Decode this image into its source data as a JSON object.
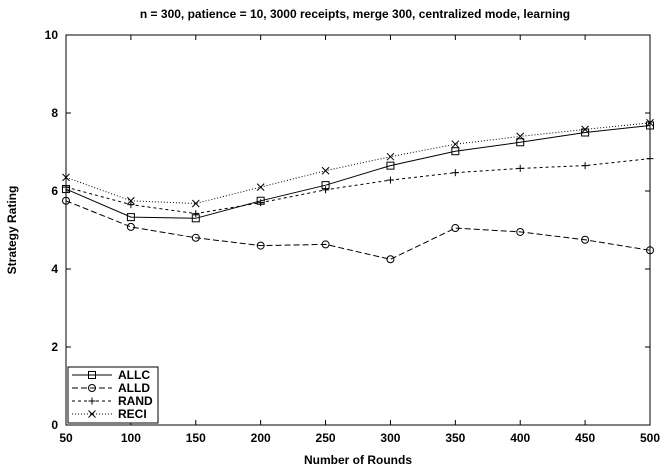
{
  "chart_data": {
    "type": "line",
    "title": "n = 300, patience = 10, 3000 receipts, merge 300, centralized mode, learning",
    "xlabel": "Number of Rounds",
    "ylabel": "Strategy Rating",
    "xlim": [
      50,
      500
    ],
    "ylim": [
      0,
      10
    ],
    "xticks": [
      50,
      100,
      150,
      200,
      250,
      300,
      350,
      400,
      450,
      500
    ],
    "yticks": [
      0,
      2,
      4,
      6,
      8,
      10
    ],
    "grid": false,
    "legend_position": "bottom-left",
    "x": [
      50,
      100,
      150,
      200,
      250,
      300,
      350,
      400,
      450,
      500
    ],
    "series": [
      {
        "name": "ALLC",
        "marker": "square",
        "dash": "solid",
        "values": [
          6.05,
          5.33,
          5.3,
          5.75,
          6.15,
          6.65,
          7.02,
          7.25,
          7.5,
          7.68
        ]
      },
      {
        "name": "ALLD",
        "marker": "circle",
        "dash": "dashed",
        "values": [
          5.75,
          5.08,
          4.8,
          4.6,
          4.63,
          4.25,
          5.05,
          4.95,
          4.75,
          4.48
        ]
      },
      {
        "name": "RAND",
        "marker": "plus",
        "dash": "dashed-short",
        "values": [
          6.1,
          5.65,
          5.42,
          5.7,
          6.03,
          6.28,
          6.47,
          6.58,
          6.65,
          6.83
        ]
      },
      {
        "name": "RECI",
        "marker": "x",
        "dash": "dotted",
        "values": [
          6.35,
          5.75,
          5.68,
          6.1,
          6.52,
          6.88,
          7.2,
          7.4,
          7.58,
          7.75
        ]
      }
    ]
  }
}
